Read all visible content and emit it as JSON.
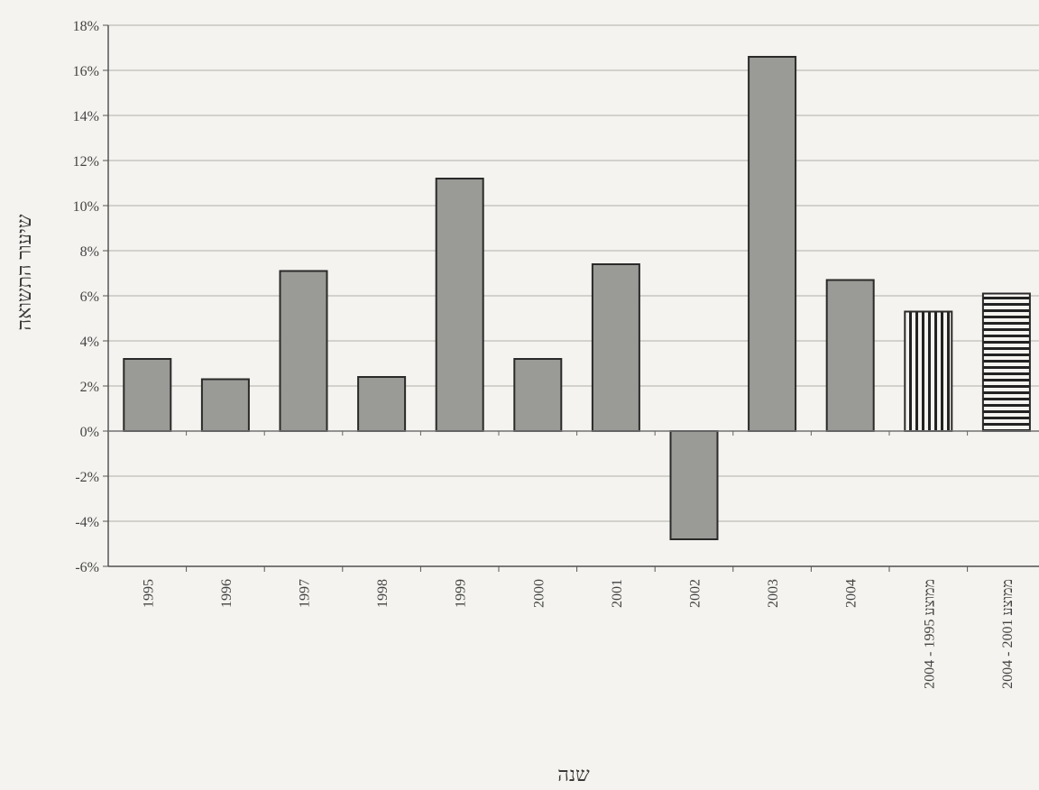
{
  "chart_data": {
    "type": "bar",
    "ylabel": "שיעור התשואה",
    "xlabel": "שנה",
    "ylim": [
      -0.06,
      0.18
    ],
    "yticks": [
      -0.06,
      -0.04,
      -0.02,
      0,
      0.02,
      0.04,
      0.06,
      0.08,
      0.1,
      0.12,
      0.14,
      0.16,
      0.18
    ],
    "ytick_labels": [
      "-6%",
      "-4%",
      "-2%",
      "0%",
      "2%",
      "4%",
      "6%",
      "8%",
      "10%",
      "12%",
      "14%",
      "16%",
      "18%"
    ],
    "grid": true,
    "categories": [
      "1995",
      "1996",
      "1997",
      "1998",
      "1999",
      "2000",
      "2001",
      "2002",
      "2003",
      "2004",
      "ממוצע 1995 - 2004",
      "ממוצע 2001 - 2004"
    ],
    "values": [
      0.032,
      0.023,
      0.071,
      0.024,
      0.112,
      0.032,
      0.074,
      -0.048,
      0.166,
      0.067,
      0.053,
      0.061
    ],
    "patterns": [
      "solid",
      "solid",
      "solid",
      "solid",
      "solid",
      "solid",
      "solid",
      "solid",
      "solid",
      "solid",
      "vertical-stripes",
      "horizontal-stripes"
    ],
    "colors": {
      "bar_fill": "#9a9a96",
      "bar_stroke": "#2a2a2a",
      "grid": "#bdbdb8",
      "stripe": "#222222",
      "stripe_bg": "#f4f3ef"
    }
  }
}
